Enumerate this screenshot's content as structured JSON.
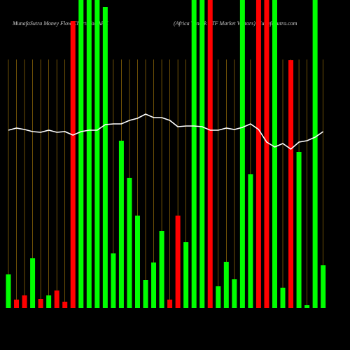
{
  "chart_data": {
    "type": "bar",
    "title": "MunafaSutra  Money Flow  Charts for AFK",
    "subtitle": "(Africa Vaneck ETF Market Vectors) MunafaSutra.com",
    "categories": [
      null,
      null,
      null,
      null,
      null,
      null,
      null,
      null,
      null,
      null,
      null,
      null,
      null,
      null,
      null,
      null,
      null,
      null,
      null,
      null,
      null,
      null,
      null,
      null,
      null,
      null,
      null,
      null,
      null,
      null,
      null,
      null,
      null,
      null,
      null,
      null,
      null,
      null,
      null,
      null
    ],
    "values": [
      48,
      12,
      18,
      71,
      13,
      18,
      25,
      9,
      410,
      440,
      440,
      440,
      430,
      78,
      239,
      186,
      132,
      40,
      65,
      110,
      12,
      132,
      94,
      440,
      440,
      440,
      31,
      66,
      41,
      440,
      191,
      440,
      440,
      440,
      29,
      354,
      223,
      4,
      440,
      61
    ],
    "colors": [
      "#00ff00",
      "#ff0000",
      "#ff0000",
      "#00ff00",
      "#ff0000",
      "#00ff00",
      "#ff0000",
      "#ff0000",
      "#ff0000",
      "#00ff00",
      "#00ff00",
      "#00ff00",
      "#00ff00",
      "#00ff00",
      "#00ff00",
      "#00ff00",
      "#00ff00",
      "#00ff00",
      "#00ff00",
      "#00ff00",
      "#ff0000",
      "#ff0000",
      "#00ff00",
      "#00ff00",
      "#00ff00",
      "#ff0000",
      "#00ff00",
      "#00ff00",
      "#00ff00",
      "#00ff00",
      "#00ff00",
      "#ff0000",
      "#ff0000",
      "#00ff00",
      "#00ff00",
      "#ff0000",
      "#00ff00",
      "#00ff00",
      "#00ff00",
      "#00ff00"
    ],
    "line_values": [
      254,
      257,
      255,
      252,
      251,
      254,
      251,
      252,
      247,
      252,
      254,
      254,
      262,
      263,
      263,
      268,
      271,
      277,
      272,
      272,
      268,
      259,
      260,
      260,
      259,
      254,
      254,
      257,
      255,
      258,
      263,
      255,
      237,
      230,
      235,
      227,
      237,
      239,
      244,
      252
    ],
    "line_color": "#ffffff",
    "grid_color": "#b8860b",
    "ylim": [
      0,
      440
    ]
  }
}
